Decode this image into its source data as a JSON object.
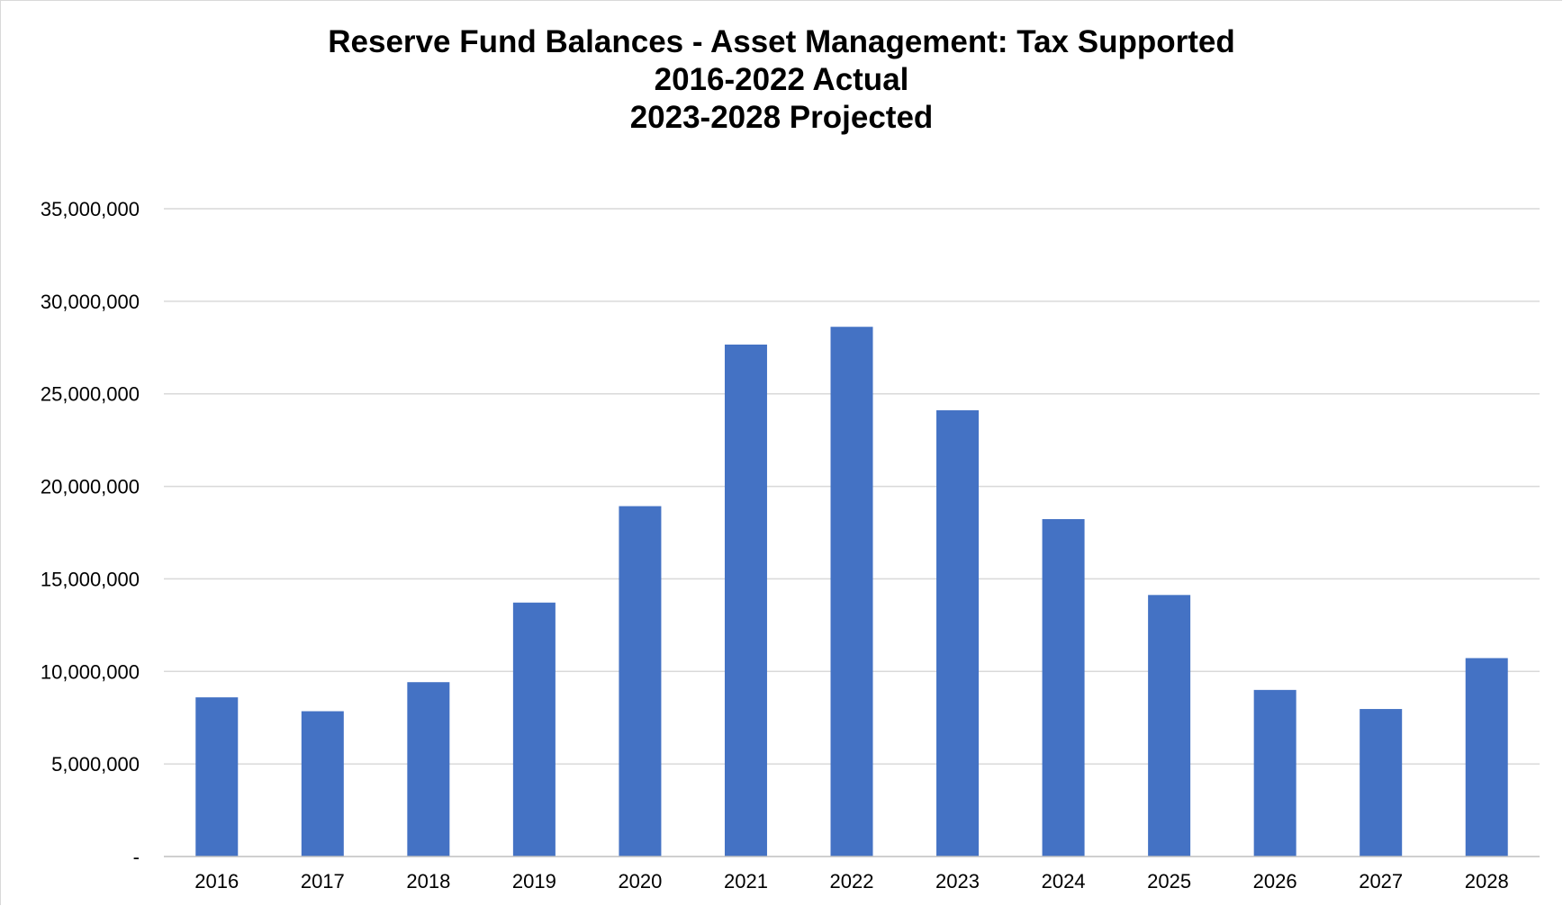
{
  "chart_data": {
    "type": "bar",
    "title_lines": [
      "Reserve Fund Balances - Asset Management: Tax Supported",
      "2016-2022 Actual",
      "2023-2028 Projected"
    ],
    "xlabel": "",
    "ylabel": "",
    "categories": [
      "2016",
      "2017",
      "2018",
      "2019",
      "2020",
      "2021",
      "2022",
      "2023",
      "2024",
      "2025",
      "2026",
      "2027",
      "2028"
    ],
    "values": [
      8600000,
      7850000,
      9420000,
      13720000,
      18930000,
      27660000,
      28620000,
      24110000,
      18230000,
      14130000,
      9000000,
      7970000,
      10720000
    ],
    "ylim": [
      0,
      35000000
    ],
    "yticks": [
      0,
      5000000,
      10000000,
      15000000,
      20000000,
      25000000,
      30000000,
      35000000
    ],
    "ytick_labels": [
      "-",
      "5,000,000",
      "10,000,000",
      "15,000,000",
      "20,000,000",
      "25,000,000",
      "30,000,000",
      "35,000,000"
    ],
    "grid": true,
    "legend": "none",
    "colors": {
      "bar": "#4472c4",
      "grid": "#d9d9d9",
      "axis": "#bfbfbf"
    }
  }
}
